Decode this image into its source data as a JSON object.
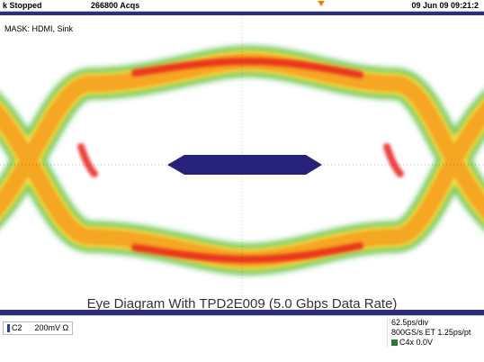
{
  "status": {
    "trigger_state": "k Stopped",
    "acquisitions": "266800 Acqs",
    "datetime": "09 Jun 09 09:21:2"
  },
  "mask": {
    "label": "MASK: HDMI, Sink"
  },
  "caption": "Eye Diagram With TPD2E009 (5.0 Gbps Data Rate)",
  "channel": {
    "name": "C2",
    "scale": "200mV Ω",
    "color": "#1a3fb0"
  },
  "timebase": {
    "per_div": "62.5ps/div",
    "sample_rate": "800GS/s ET 1.25ps/pt",
    "trigger_source": "C4",
    "trigger_level": "x 0.0V"
  },
  "colors": {
    "mask_region": "#26217a",
    "eye_hot": "#e8201a",
    "eye_mid": "#f5a623",
    "eye_warm": "#f7e04a",
    "eye_cool": "#3fb94a",
    "marker": "#e08a00"
  }
}
